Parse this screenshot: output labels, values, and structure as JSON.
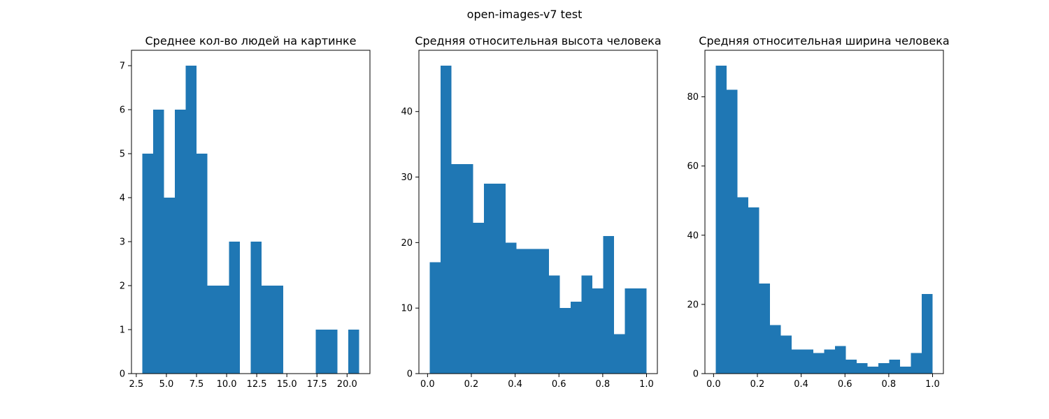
{
  "figure": {
    "suptitle": "open-images-v7 test"
  },
  "chart_data": [
    {
      "type": "bar",
      "title": "Среднее кол-во людей на картинке",
      "xlabel": "",
      "ylabel": "",
      "bin_edges": [
        3.0,
        3.9,
        4.8,
        5.7,
        6.6,
        7.5,
        8.4,
        9.3,
        10.2,
        11.1,
        12.0,
        12.9,
        13.8,
        14.7,
        15.6,
        16.5,
        17.4,
        18.3,
        19.2,
        20.1,
        21.0
      ],
      "values": [
        5,
        6,
        4,
        6,
        7,
        5,
        2,
        2,
        3,
        0,
        3,
        2,
        2,
        0,
        0,
        0,
        1,
        1,
        0,
        1
      ],
      "xlim": [
        2.1,
        21.9
      ],
      "ylim": [
        0,
        7.35
      ],
      "xticks": [
        2.5,
        5.0,
        7.5,
        10.0,
        12.5,
        15.0,
        17.5,
        20.0
      ],
      "xtick_labels": [
        "2.5",
        "5.0",
        "7.5",
        "10.0",
        "12.5",
        "15.0",
        "17.5",
        "20.0"
      ],
      "yticks": [
        0,
        1,
        2,
        3,
        4,
        5,
        6,
        7
      ],
      "ytick_labels": [
        "0",
        "1",
        "2",
        "3",
        "4",
        "5",
        "6",
        "7"
      ],
      "color": "#1f77b4",
      "grid": false
    },
    {
      "type": "bar",
      "title": "Средняя относительная высота человека",
      "xlabel": "",
      "ylabel": "",
      "bin_edges": [
        0.01,
        0.0595,
        0.109,
        0.1585,
        0.208,
        0.2575,
        0.307,
        0.3565,
        0.406,
        0.4555,
        0.505,
        0.5545,
        0.604,
        0.6535,
        0.703,
        0.7525,
        0.802,
        0.8515,
        0.901,
        0.9505,
        1.0
      ],
      "values": [
        17,
        47,
        32,
        32,
        23,
        29,
        29,
        20,
        19,
        19,
        19,
        15,
        10,
        11,
        15,
        13,
        21,
        6,
        13,
        13
      ],
      "xlim": [
        -0.0395,
        1.0495
      ],
      "ylim": [
        0,
        49.35
      ],
      "xticks": [
        0.0,
        0.2,
        0.4,
        0.6,
        0.8,
        1.0
      ],
      "xtick_labels": [
        "0.0",
        "0.2",
        "0.4",
        "0.6",
        "0.8",
        "1.0"
      ],
      "yticks": [
        0,
        10,
        20,
        30,
        40
      ],
      "ytick_labels": [
        "0",
        "10",
        "20",
        "30",
        "40"
      ],
      "color": "#1f77b4",
      "grid": false
    },
    {
      "type": "bar",
      "title": "Средняя относительная ширина человека",
      "xlabel": "",
      "ylabel": "",
      "bin_edges": [
        0.01,
        0.0595,
        0.109,
        0.1585,
        0.208,
        0.2575,
        0.307,
        0.3565,
        0.406,
        0.4555,
        0.505,
        0.5545,
        0.604,
        0.6535,
        0.703,
        0.7525,
        0.802,
        0.8515,
        0.901,
        0.9505,
        1.0
      ],
      "values": [
        89,
        82,
        51,
        48,
        26,
        14,
        11,
        7,
        7,
        6,
        7,
        8,
        4,
        3,
        2,
        3,
        4,
        2,
        6,
        23
      ],
      "xlim": [
        -0.0395,
        1.0495
      ],
      "ylim": [
        0,
        93.45
      ],
      "xticks": [
        0.0,
        0.2,
        0.4,
        0.6,
        0.8,
        1.0
      ],
      "xtick_labels": [
        "0.0",
        "0.2",
        "0.4",
        "0.6",
        "0.8",
        "1.0"
      ],
      "yticks": [
        0,
        20,
        40,
        60,
        80
      ],
      "ytick_labels": [
        "0",
        "20",
        "40",
        "60",
        "80"
      ],
      "color": "#1f77b4",
      "grid": false
    }
  ]
}
